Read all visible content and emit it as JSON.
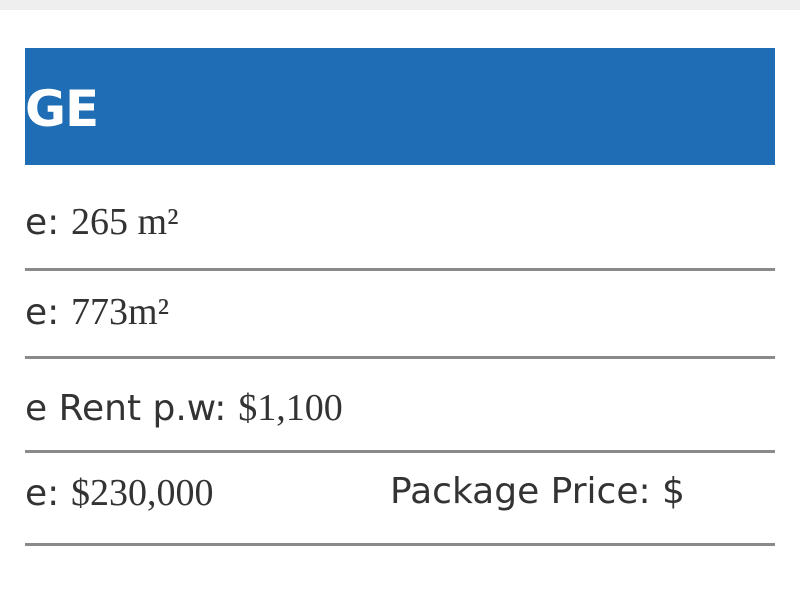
{
  "header": {
    "title": "GE"
  },
  "rows": [
    {
      "label": "e:",
      "value": "265 m²"
    },
    {
      "label": "e:",
      "value": "773m²"
    },
    {
      "label": "e Rent p.w:",
      "value": "$1,100"
    },
    {
      "label": "e:",
      "value": "$230,000",
      "extra": "Package Price: $"
    }
  ]
}
